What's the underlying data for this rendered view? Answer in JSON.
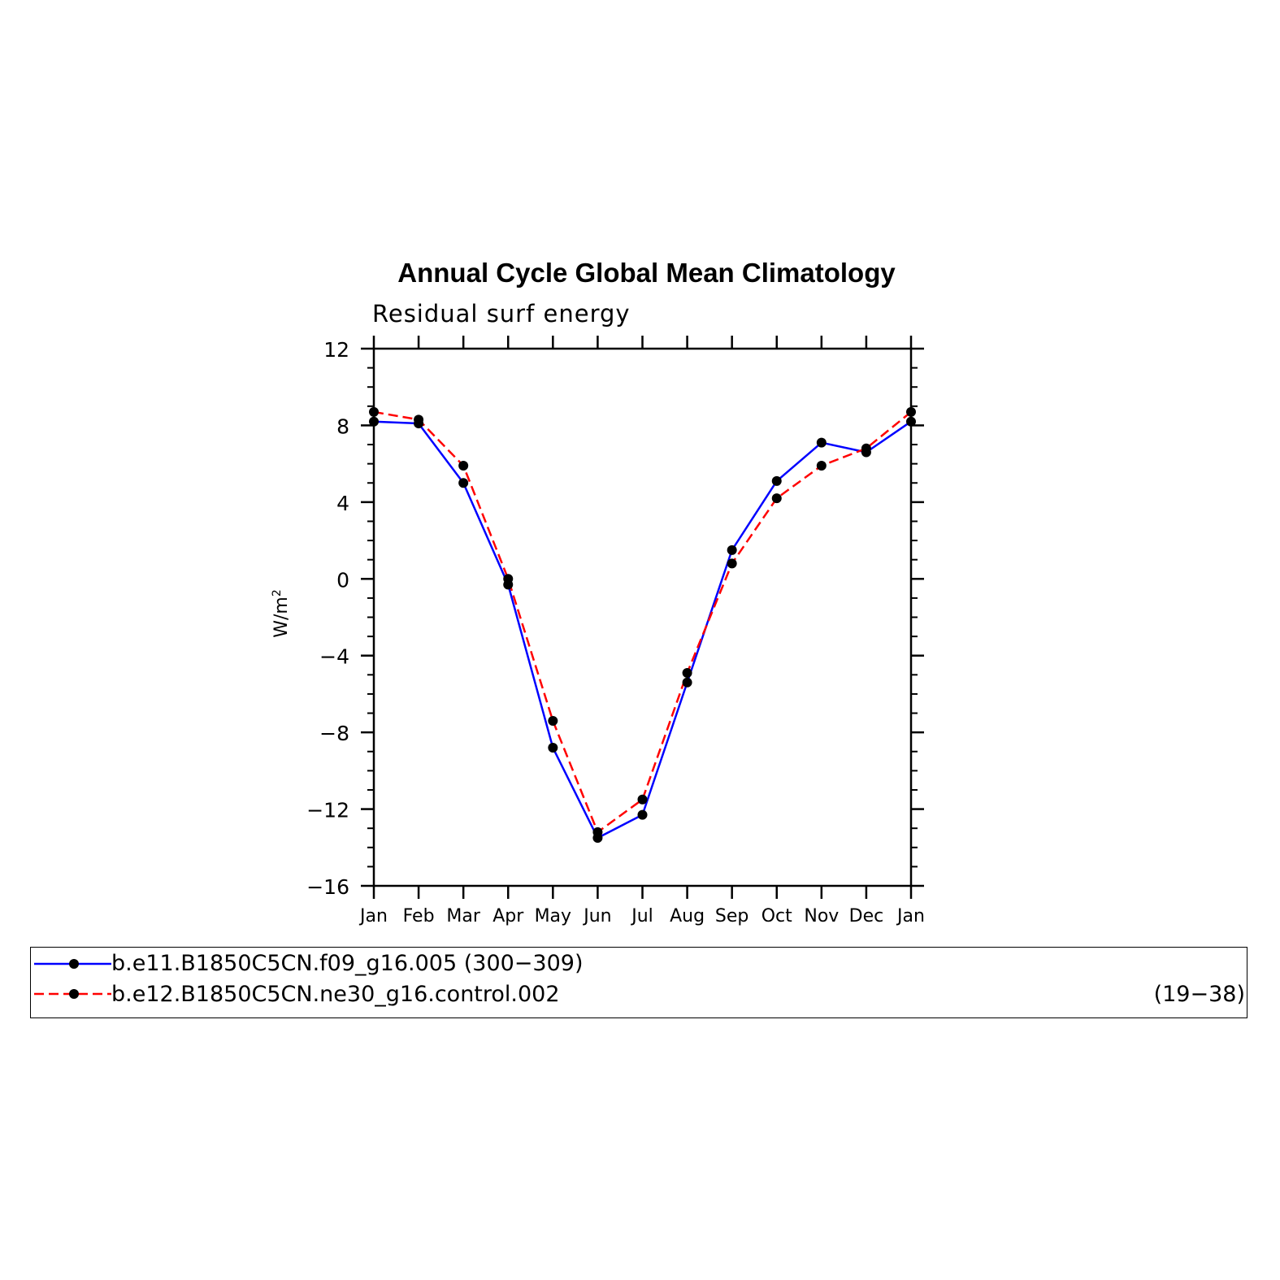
{
  "colors": {
    "series1": "#0000ff",
    "series2": "#ff0000",
    "marker": "#000000",
    "axis": "#000000"
  },
  "chart_data": {
    "type": "line",
    "title": "Annual Cycle Global Mean Climatology",
    "subtitle": "Residual surf energy",
    "ylabel": "W/m",
    "ylabel_sup": "2",
    "xlabel": "",
    "categories": [
      "Jan",
      "Feb",
      "Mar",
      "Apr",
      "May",
      "Jun",
      "Jul",
      "Aug",
      "Sep",
      "Oct",
      "Nov",
      "Dec",
      "Jan"
    ],
    "ylim": [
      -16,
      12
    ],
    "yticks": [
      12,
      8,
      4,
      0,
      -4,
      -8,
      -12,
      -16
    ],
    "ytick_labels": [
      "12",
      "8",
      "4",
      "0",
      "−4",
      "−8",
      "−12",
      "−16"
    ],
    "grid": false,
    "series": [
      {
        "name": "b.e11.B1850C5CN.f09_g16.005 (300−309)",
        "line_style": "solid",
        "color": "#0000ff",
        "values": [
          8.2,
          8.1,
          5.0,
          -0.3,
          -8.8,
          -13.5,
          -12.3,
          -5.4,
          1.5,
          5.1,
          7.1,
          6.6,
          8.2
        ]
      },
      {
        "name": "b.e12.B1850C5CN.ne30_g16.control.002",
        "line_style": "dashed",
        "color": "#ff0000",
        "values": [
          8.7,
          8.3,
          5.9,
          0.0,
          -7.4,
          -13.2,
          -11.5,
          -4.9,
          0.8,
          4.2,
          5.9,
          6.8,
          8.7
        ]
      }
    ],
    "legend": {
      "placement": "bottom",
      "entries": [
        {
          "label": "b.e11.B1850C5CN.f09_g16.005 (300−309)",
          "years": ""
        },
        {
          "label": "b.e12.B1850C5CN.ne30_g16.control.002",
          "years": "(19−38)"
        }
      ]
    }
  }
}
